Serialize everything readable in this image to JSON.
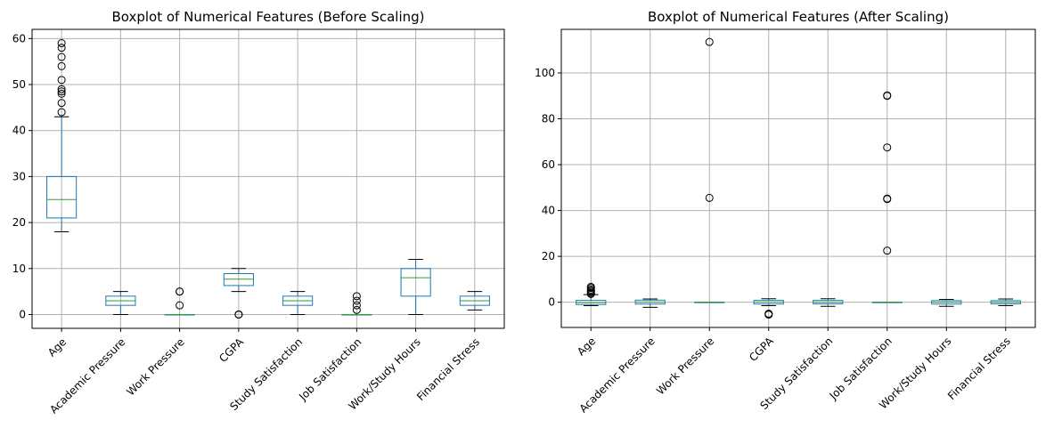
{
  "chart_data": [
    {
      "type": "boxplot",
      "title": "Boxplot of Numerical Features (Before Scaling)",
      "categories": [
        "Age",
        "Academic Pressure",
        "Work Pressure",
        "CGPA",
        "Study Satisfaction",
        "Job Satisfaction",
        "Work/Study Hours",
        "Financial Stress"
      ],
      "ylim": [
        -3,
        62
      ],
      "yticks": [
        0,
        10,
        20,
        30,
        40,
        50,
        60
      ],
      "grid": true,
      "colors": {
        "box": "#1f77b4",
        "median": "#2ca02c",
        "whisker": "#000000"
      },
      "boxes": [
        {
          "label": "Age",
          "whislo": 18,
          "q1": 21,
          "med": 25,
          "q3": 30,
          "whishi": 43,
          "fliers": [
            44,
            46,
            48,
            48.5,
            49,
            51,
            54,
            56,
            58,
            59
          ]
        },
        {
          "label": "Academic Pressure",
          "whislo": 0,
          "q1": 2,
          "med": 3,
          "q3": 4,
          "whishi": 5,
          "fliers": []
        },
        {
          "label": "Work Pressure",
          "whislo": 0,
          "q1": 0,
          "med": 0,
          "q3": 0,
          "whishi": 0,
          "fliers": [
            2,
            5,
            5
          ]
        },
        {
          "label": "CGPA",
          "whislo": 5,
          "q1": 6.3,
          "med": 7.7,
          "q3": 8.9,
          "whishi": 10,
          "fliers": [
            0,
            0,
            0
          ]
        },
        {
          "label": "Study Satisfaction",
          "whislo": 0,
          "q1": 2,
          "med": 3,
          "q3": 4,
          "whishi": 5,
          "fliers": []
        },
        {
          "label": "Job Satisfaction",
          "whislo": 0,
          "q1": 0,
          "med": 0,
          "q3": 0,
          "whishi": 0,
          "fliers": [
            1,
            2,
            3,
            4
          ]
        },
        {
          "label": "Work/Study Hours",
          "whislo": 0,
          "q1": 4,
          "med": 8,
          "q3": 10,
          "whishi": 12,
          "fliers": []
        },
        {
          "label": "Financial Stress",
          "whislo": 1,
          "q1": 2,
          "med": 3,
          "q3": 4,
          "whishi": 5,
          "fliers": []
        }
      ]
    },
    {
      "type": "boxplot",
      "title": "Boxplot of Numerical Features (After Scaling)",
      "categories": [
        "Age",
        "Academic Pressure",
        "Work Pressure",
        "CGPA",
        "Study Satisfaction",
        "Job Satisfaction",
        "Work/Study Hours",
        "Financial Stress"
      ],
      "ylim": [
        -11,
        119
      ],
      "yticks": [
        0,
        20,
        40,
        60,
        80,
        100
      ],
      "grid": true,
      "colors": {
        "box": "#1f77b4",
        "median": "#2ca02c",
        "whisker": "#000000"
      },
      "boxes": [
        {
          "label": "Age",
          "whislo": -1.5,
          "q1": -1,
          "med": -0.2,
          "q3": 0.8,
          "whishi": 3.3,
          "fliers": [
            3.6,
            4,
            4.5,
            5,
            5.5,
            6.2,
            6.7
          ]
        },
        {
          "label": "Academic Pressure",
          "whislo": -2.2,
          "q1": -0.8,
          "med": 0,
          "q3": 0.9,
          "whishi": 1.4,
          "fliers": []
        },
        {
          "label": "Work Pressure",
          "whislo": 0,
          "q1": 0,
          "med": 0,
          "q3": 0,
          "whishi": 0,
          "fliers": [
            45.5,
            113.5
          ]
        },
        {
          "label": "CGPA",
          "whislo": -1.5,
          "q1": -0.8,
          "med": 0,
          "q3": 0.8,
          "whishi": 1.5,
          "fliers": [
            -5,
            -5.2,
            -5.4
          ]
        },
        {
          "label": "Study Satisfaction",
          "whislo": -1.8,
          "q1": -0.7,
          "med": 0,
          "q3": 0.8,
          "whishi": 1.5,
          "fliers": []
        },
        {
          "label": "Job Satisfaction",
          "whislo": 0,
          "q1": 0,
          "med": 0,
          "q3": 0,
          "whishi": 0,
          "fliers": [
            22.5,
            45,
            45.2,
            67.5,
            90,
            90.2
          ]
        },
        {
          "label": "Work/Study Hours",
          "whislo": -1.8,
          "q1": -0.8,
          "med": 0,
          "q3": 0.7,
          "whishi": 1.2,
          "fliers": []
        },
        {
          "label": "Financial Stress",
          "whislo": -1.5,
          "q1": -0.7,
          "med": 0,
          "q3": 0.7,
          "whishi": 1.4,
          "fliers": []
        }
      ]
    }
  ]
}
